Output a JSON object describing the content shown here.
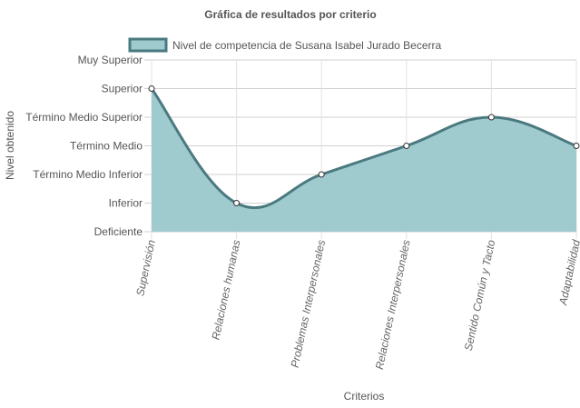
{
  "chart_data": {
    "type": "area",
    "title": "Gráfica de resultados por criterio",
    "xlabel": "Criterios",
    "ylabel": "Nivel obtenido",
    "categories": [
      "Supervisión",
      "Relaciones humanas",
      "Problemas Interpersonales",
      "Relaciones Interpersonales",
      "Sentido Común y Tacto",
      "Adaptabilidad"
    ],
    "y_levels": [
      "Deficiente",
      "Inferior",
      "Término Medio Inferior",
      "Término Medio",
      "Término Medio Superior",
      "Superior",
      "Muy Superior"
    ],
    "ylim": [
      0,
      6
    ],
    "series": [
      {
        "name": "Nivel de competencia de Susana Isabel Jurado Becerra",
        "values": [
          5,
          1,
          2,
          3,
          4,
          3
        ]
      }
    ],
    "legend_position": "top",
    "grid": true,
    "fill_color": "#a0cbce",
    "line_color": "#4a7a80",
    "point_color": "#ffffff"
  }
}
